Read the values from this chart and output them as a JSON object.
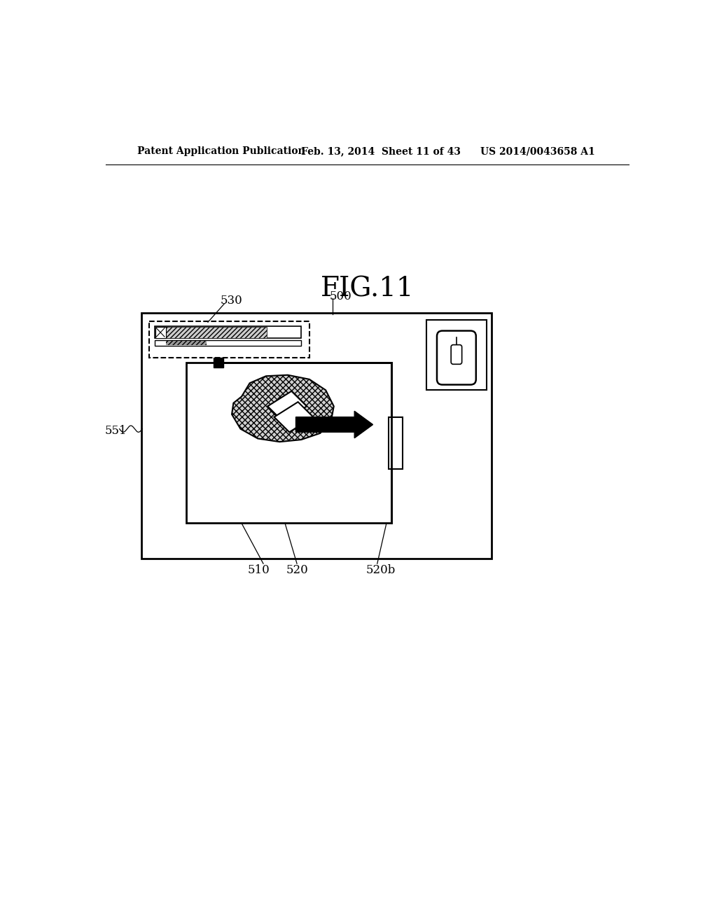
{
  "title": "FIG.11",
  "header_left": "Patent Application Publication",
  "header_center": "Feb. 13, 2014  Sheet 11 of 43",
  "header_right": "US 2014/0043658 A1",
  "bg_color": "#ffffff",
  "label_530": "530",
  "label_500": "500",
  "label_551": "551",
  "label_510": "510",
  "label_520": "520",
  "label_520b": "520b"
}
